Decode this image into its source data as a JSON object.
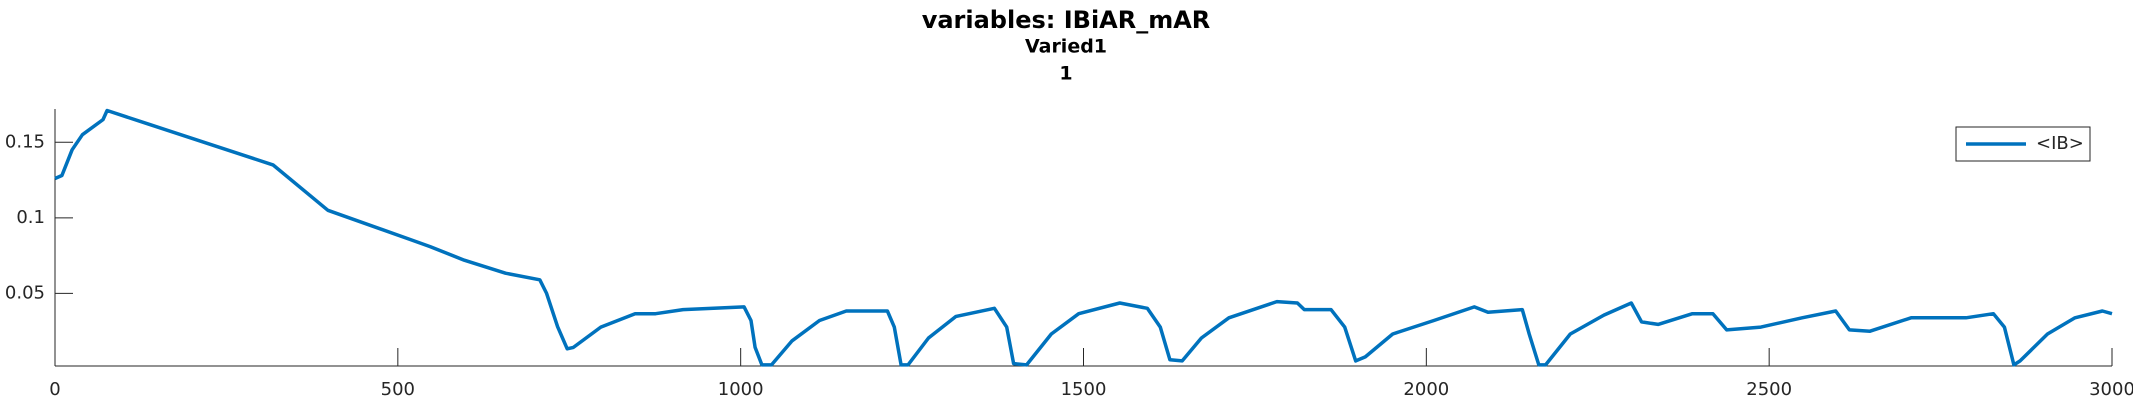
{
  "chart_data": {
    "type": "line",
    "title": "variables: IBiAR_mAR",
    "subtitle": "Varied1",
    "subsubtitle": "1",
    "x": [
      0,
      10,
      25,
      40,
      70,
      76,
      139,
      318,
      398,
      518,
      547,
      597,
      657,
      707,
      717,
      733,
      747,
      756,
      796,
      846,
      876,
      916,
      1005,
      1015,
      1021,
      1031,
      1045,
      1075,
      1115,
      1154,
      1214,
      1224,
      1234,
      1244,
      1274,
      1314,
      1370,
      1388,
      1398,
      1417,
      1453,
      1493,
      1553,
      1593,
      1612,
      1626,
      1644,
      1672,
      1712,
      1782,
      1812,
      1822,
      1861,
      1881,
      1897,
      1911,
      1951,
      2011,
      2070,
      2090,
      2140,
      2150,
      2164,
      2174,
      2210,
      2259,
      2299,
      2314,
      2338,
      2388,
      2418,
      2438,
      2488,
      2548,
      2597,
      2617,
      2647,
      2707,
      2787,
      2827,
      2843,
      2857,
      2866,
      2906,
      2946,
      2986,
      3000
    ],
    "series": [
      {
        "name": "<IB>",
        "color": "#0072bd",
        "values": [
          0.126,
          0.128,
          0.145,
          0.155,
          0.165,
          0.171,
          0.1616,
          0.135,
          0.105,
          0.0857,
          0.081,
          0.072,
          0.0634,
          0.059,
          0.05,
          0.028,
          0.0134,
          0.0143,
          0.0277,
          0.0366,
          0.0366,
          0.0393,
          0.0411,
          0.0321,
          0.0143,
          0.0027,
          0.0027,
          0.0187,
          0.0321,
          0.0384,
          0.0384,
          0.0277,
          0.0027,
          0.0027,
          0.0205,
          0.0348,
          0.0402,
          0.0277,
          0.0036,
          0.0027,
          0.0232,
          0.0366,
          0.0437,
          0.0402,
          0.0277,
          0.0062,
          0.0054,
          0.0205,
          0.0339,
          0.0446,
          0.0437,
          0.0393,
          0.0393,
          0.0277,
          0.0054,
          0.008,
          0.0232,
          0.0321,
          0.0411,
          0.0375,
          0.0393,
          0.0232,
          0.0027,
          0.0027,
          0.0232,
          0.0357,
          0.0437,
          0.0312,
          0.0295,
          0.0366,
          0.0366,
          0.0259,
          0.0277,
          0.0339,
          0.0384,
          0.0259,
          0.025,
          0.0339,
          0.0339,
          0.0366,
          0.0277,
          0.0027,
          0.0054,
          0.0232,
          0.0339,
          0.0384,
          0.0366
        ]
      }
    ],
    "xlim": [
      0,
      3000
    ],
    "xticks": [
      0,
      500,
      1000,
      1500,
      2000,
      2500,
      3000
    ],
    "ylim": [
      0.002,
      0.172
    ],
    "yticks": [
      0.05,
      0.1,
      0.15
    ],
    "legend": "top-right"
  }
}
